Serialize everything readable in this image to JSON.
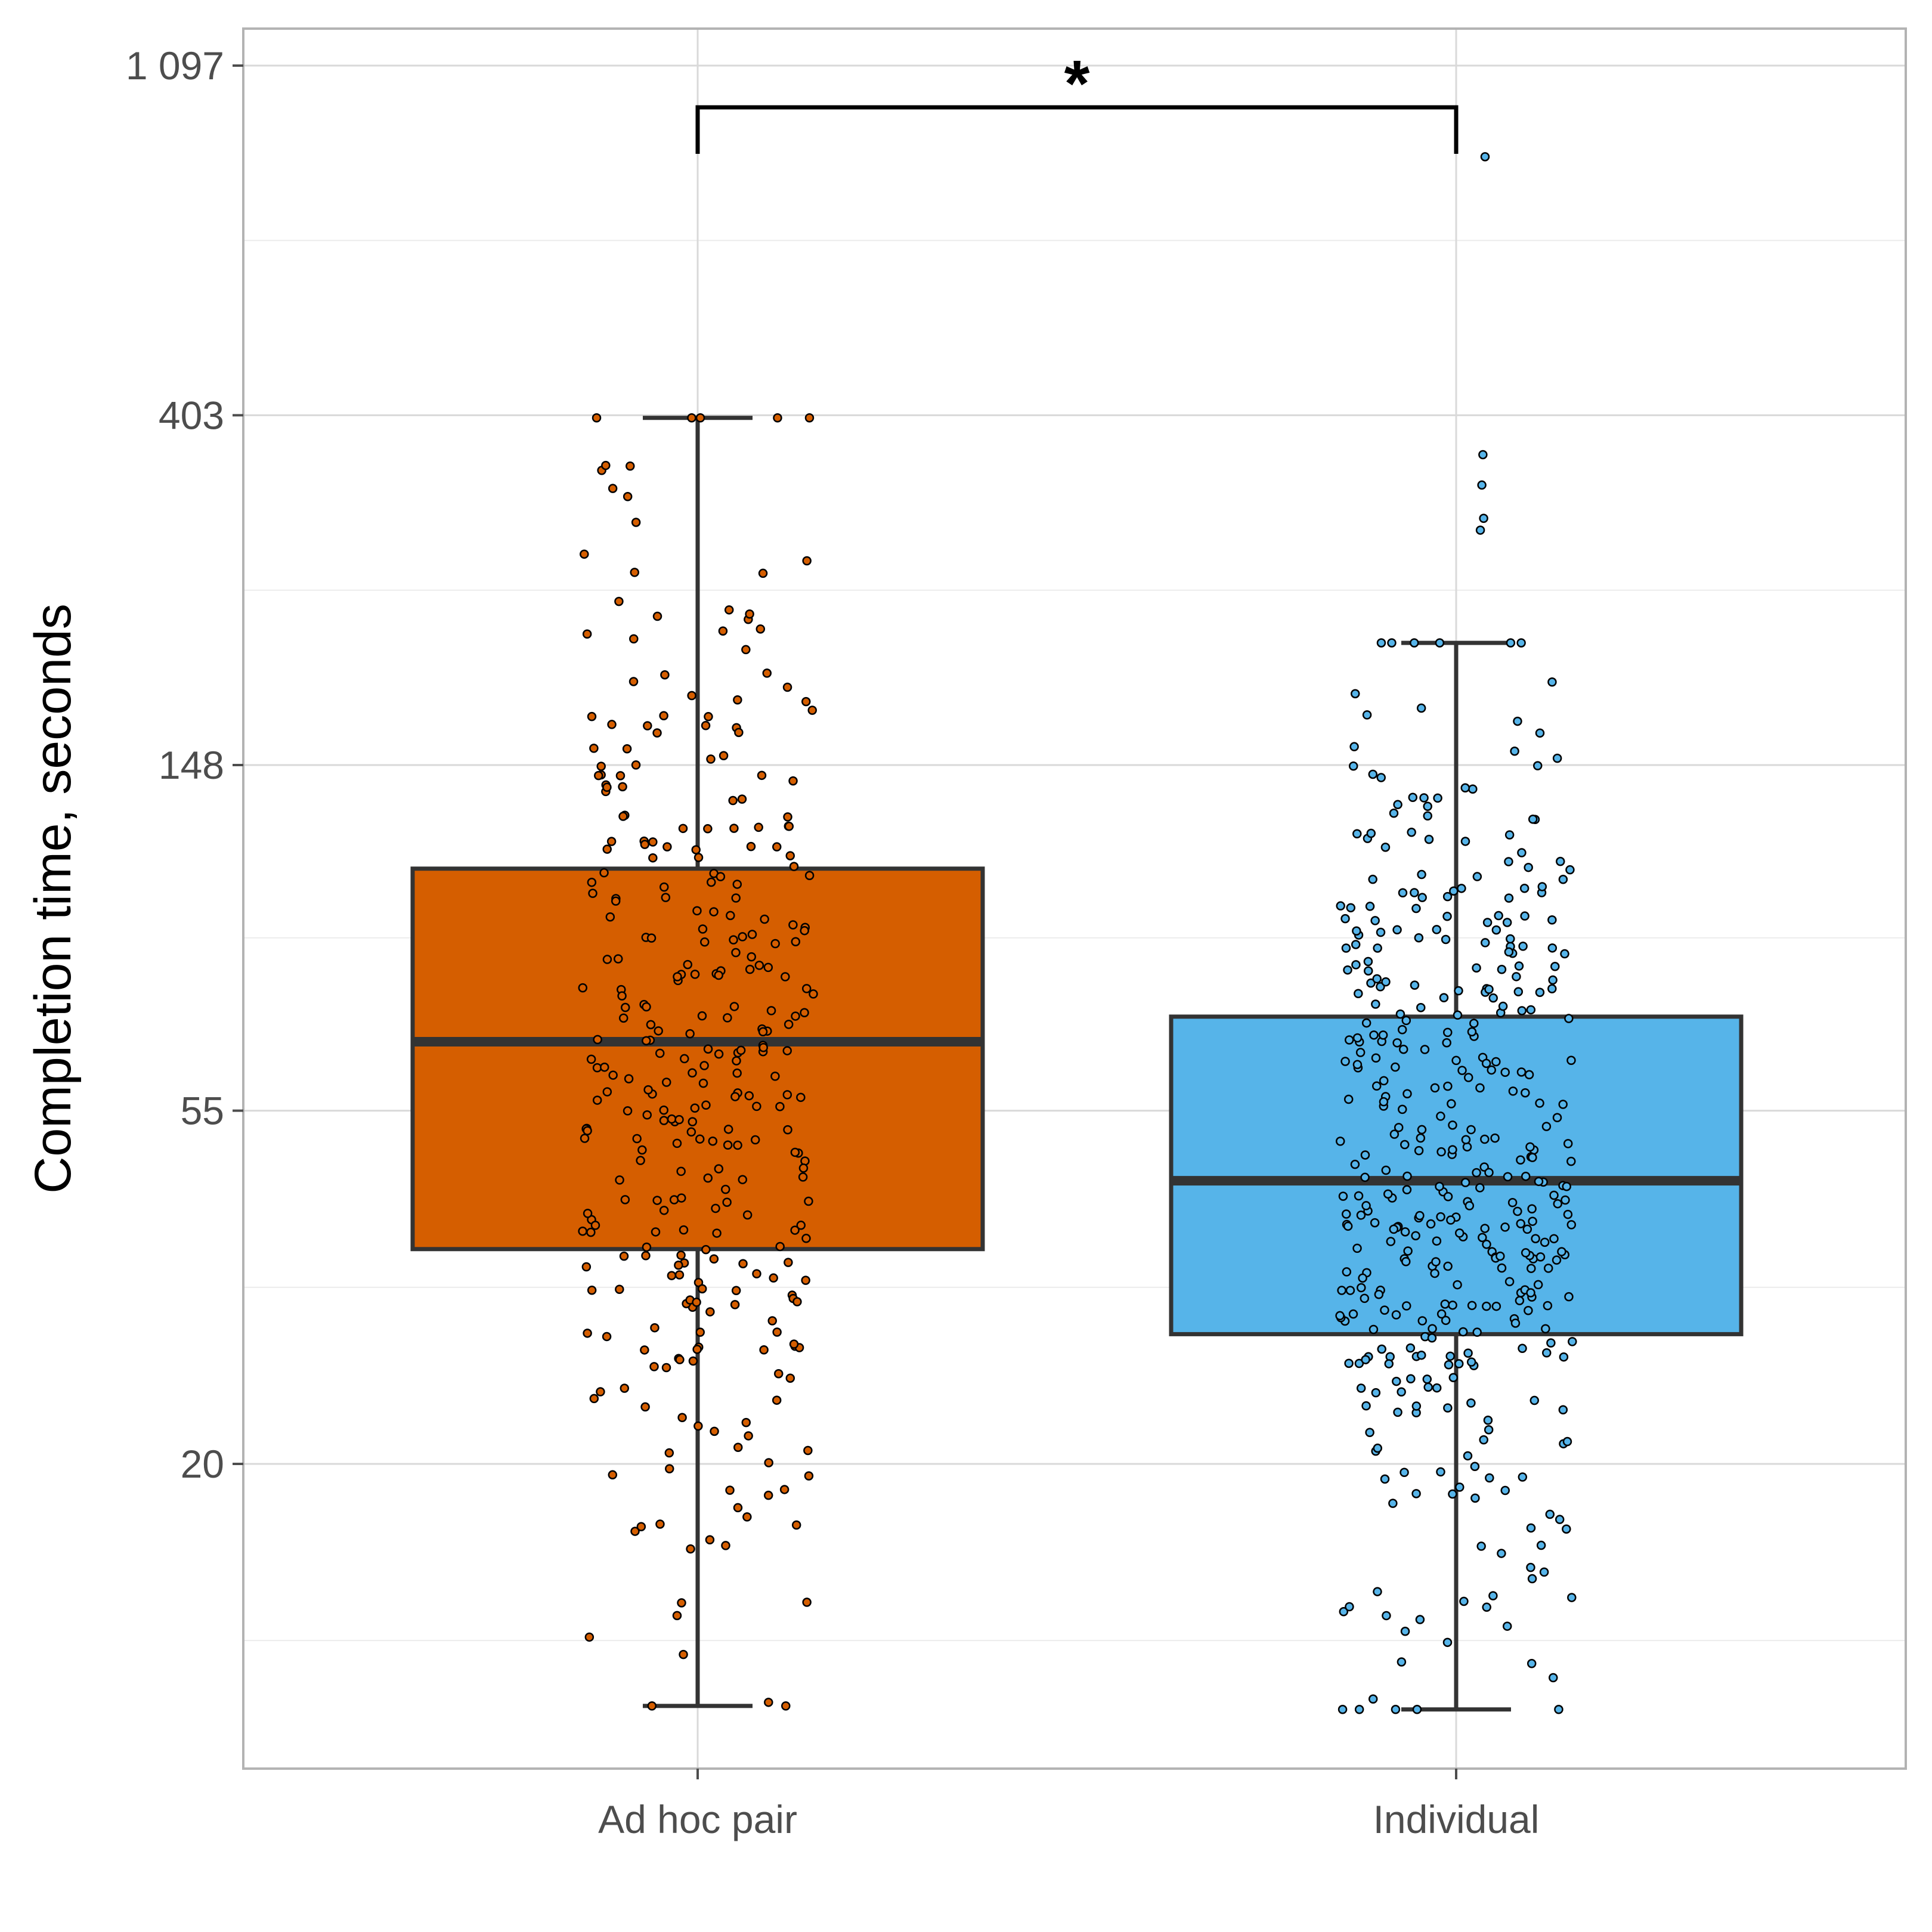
{
  "chart_data": {
    "type": "boxplot",
    "title": "",
    "xlabel": "",
    "ylabel": "Completion time, seconds",
    "y_scale": "log",
    "ylim": [
      7.5,
      1200
    ],
    "y_ticks": [
      20,
      55,
      148,
      403,
      1097
    ],
    "y_tick_labels": [
      "20",
      "55",
      "148",
      "403",
      "1 097"
    ],
    "categories": [
      "Ad hoc pair",
      "Individual"
    ],
    "grid": true,
    "legend": "none",
    "series": [
      {
        "category": "Ad hoc pair",
        "color": "#D55E00",
        "point_color": "#D55E00",
        "whisker_low": 10,
        "q1": 37,
        "median": 67,
        "q3": 110,
        "whisker_high": 400,
        "point_count": 330
      },
      {
        "category": "Individual",
        "color": "#56B4E9",
        "point_color": "#56B4E9",
        "whisker_low": 9.9,
        "q1": 29,
        "median": 45,
        "q3": 72,
        "whisker_high": 210,
        "outliers": [
          360,
          330,
          300,
          290,
          845
        ],
        "point_count": 420
      }
    ],
    "significance": {
      "groups": [
        "Ad hoc pair",
        "Individual"
      ],
      "label": "*"
    }
  }
}
